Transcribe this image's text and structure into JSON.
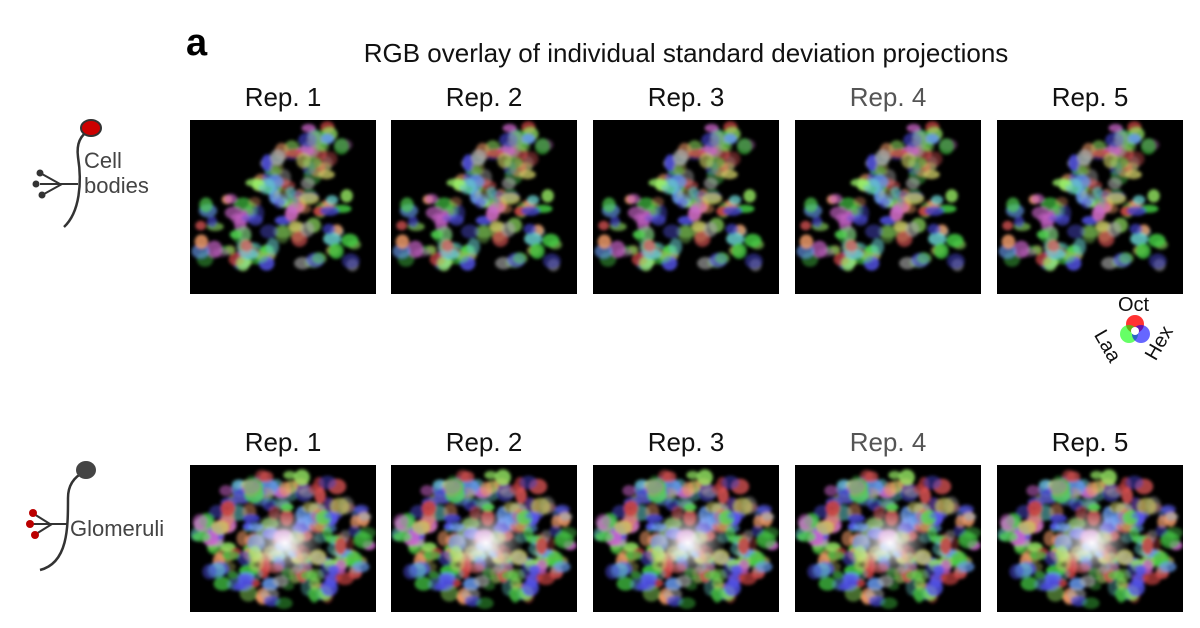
{
  "panel_label": "a",
  "title": "RGB overlay of individual standard deviation projections",
  "rows": [
    {
      "label": "Cell bodies",
      "panels": [
        "Rep. 1",
        "Rep. 2",
        "Rep. 3",
        "Rep. 4",
        "Rep. 5"
      ]
    },
    {
      "label": "Glomeruli",
      "panels": [
        "Rep. 1",
        "Rep. 2",
        "Rep. 3",
        "Rep. 4",
        "Rep. 5"
      ]
    }
  ],
  "legend": {
    "top": "Oct",
    "left": "Laa",
    "right": "Hex"
  }
}
